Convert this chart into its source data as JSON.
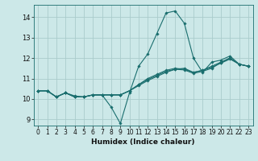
{
  "title": "",
  "xlabel": "Humidex (Indice chaleur)",
  "ylabel": "",
  "background_color": "#cce8e8",
  "grid_color": "#aacccc",
  "line_color": "#1a6e6e",
  "xlim": [
    -0.5,
    23.5
  ],
  "ylim": [
    8.7,
    14.6
  ],
  "xticks": [
    0,
    1,
    2,
    3,
    4,
    5,
    6,
    7,
    8,
    9,
    10,
    11,
    12,
    13,
    14,
    15,
    16,
    17,
    18,
    19,
    20,
    21,
    22,
    23
  ],
  "yticks": [
    9,
    10,
    11,
    12,
    13,
    14
  ],
  "lines": [
    {
      "x": [
        0,
        1,
        2,
        3,
        4,
        5,
        6,
        7,
        8,
        9,
        10,
        11,
        12,
        13,
        14,
        15,
        16,
        17,
        18,
        19,
        20,
        21,
        22,
        23
      ],
      "y": [
        10.4,
        10.4,
        10.1,
        10.3,
        10.1,
        10.1,
        10.2,
        10.2,
        9.6,
        8.8,
        10.3,
        11.6,
        12.2,
        13.2,
        14.2,
        14.3,
        13.7,
        12.0,
        11.3,
        11.8,
        11.9,
        12.1,
        11.7,
        11.6
      ]
    },
    {
      "x": [
        0,
        1,
        2,
        3,
        4,
        5,
        6,
        7,
        8,
        9,
        10,
        11,
        12,
        13,
        14,
        15,
        16,
        17,
        18,
        19,
        20,
        21,
        22,
        23
      ],
      "y": [
        10.4,
        10.4,
        10.1,
        10.3,
        10.15,
        10.1,
        10.2,
        10.2,
        10.2,
        10.2,
        10.4,
        10.65,
        10.9,
        11.1,
        11.3,
        11.45,
        11.5,
        11.3,
        11.4,
        11.6,
        11.8,
        12.0,
        11.7,
        11.6
      ]
    },
    {
      "x": [
        0,
        1,
        2,
        3,
        4,
        5,
        6,
        7,
        8,
        9,
        10,
        11,
        12,
        13,
        14,
        15,
        16,
        17,
        18,
        19,
        20,
        21,
        22,
        23
      ],
      "y": [
        10.4,
        10.4,
        10.1,
        10.3,
        10.1,
        10.1,
        10.2,
        10.2,
        10.2,
        10.2,
        10.4,
        10.7,
        11.0,
        11.2,
        11.4,
        11.5,
        11.45,
        11.3,
        11.4,
        11.55,
        11.75,
        11.95,
        11.7,
        11.6
      ]
    },
    {
      "x": [
        0,
        1,
        2,
        3,
        4,
        5,
        6,
        7,
        8,
        9,
        10,
        11,
        12,
        13,
        14,
        15,
        16,
        17,
        18,
        19,
        20,
        21,
        22,
        23
      ],
      "y": [
        10.4,
        10.4,
        10.1,
        10.3,
        10.1,
        10.1,
        10.2,
        10.2,
        10.2,
        10.2,
        10.4,
        10.7,
        10.95,
        11.15,
        11.35,
        11.45,
        11.42,
        11.25,
        11.35,
        11.5,
        11.78,
        12.0,
        11.7,
        11.6
      ]
    }
  ]
}
